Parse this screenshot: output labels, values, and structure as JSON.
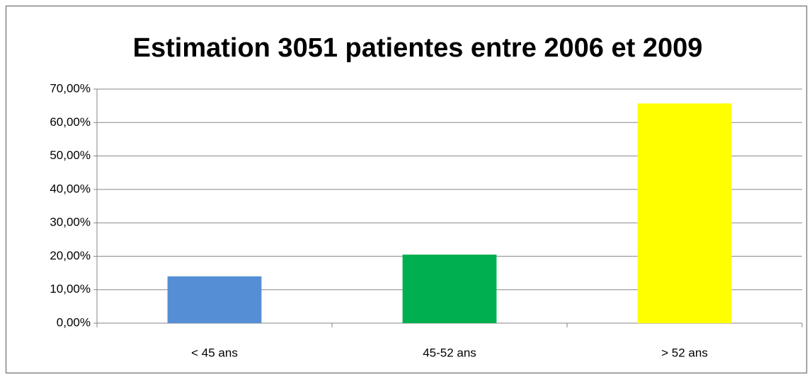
{
  "chart_data": {
    "type": "bar",
    "title": "Estimation 3051 patientes entre 2006 et 2009",
    "categories": [
      "< 45 ans",
      "45-52 ans",
      "> 52 ans"
    ],
    "values": [
      14,
      20.5,
      65.7
    ],
    "colors": [
      "#558ed5",
      "#00b050",
      "#ffff00"
    ],
    "ylim": [
      0,
      70
    ],
    "yticks": [
      {
        "value": 0,
        "label": "0,00%"
      },
      {
        "value": 10,
        "label": "10,00%"
      },
      {
        "value": 20,
        "label": "20,00%"
      },
      {
        "value": 30,
        "label": "30,00%"
      },
      {
        "value": 40,
        "label": "40,00%"
      },
      {
        "value": 50,
        "label": "50,00%"
      },
      {
        "value": 60,
        "label": "60,00%"
      },
      {
        "value": 70,
        "label": "70,00%"
      }
    ],
    "grid": true
  }
}
